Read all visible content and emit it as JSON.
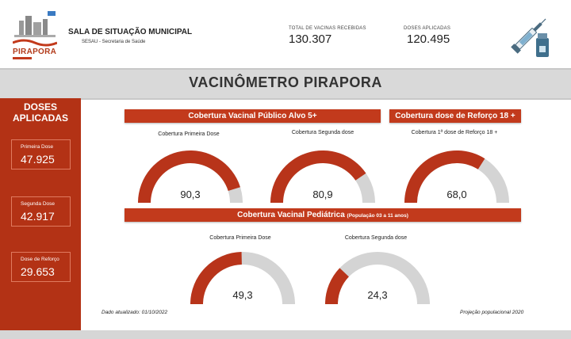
{
  "colors": {
    "accent": "#c23a1c",
    "gauge_fill": "#b8341a",
    "gauge_track": "#d4d4d4",
    "band": "#d9d9d9"
  },
  "header": {
    "logo_text": "PIRAPORA",
    "org_title": "SALA DE SITUAÇÃO MUNICIPAL",
    "org_subtitle": "SESAU - Secretaria de Saúde",
    "kpis": [
      {
        "label": "TOTAL DE VACINAS RECEBIDAS",
        "value": "130.307"
      },
      {
        "label": "DOSES APLICADAS",
        "value": "120.495"
      }
    ],
    "icon": "vaccine-syringe-icon"
  },
  "page_title": "VACINÔMETRO PIRAPORA",
  "sidebar": {
    "title_line1": "DOSES",
    "title_line2": "APLICADAS",
    "cards": [
      {
        "label": "Primeira Dose",
        "value": "47.925"
      },
      {
        "label": "Segunda Dose",
        "value": "42.917"
      },
      {
        "label": "Dose de Reforço",
        "value": "29.653"
      }
    ]
  },
  "sections": {
    "adult": "Cobertura Vacinal Público Alvo 5+",
    "booster": "Cobertura dose de Reforço 18 +",
    "pediatric": "Cobertura Vacinal Pediátrica",
    "pediatric_note": "(População 03 a 11 anos)"
  },
  "gauges": [
    {
      "caption": "Cobertura Primeira Dose",
      "value": 90.3,
      "display": "90,3"
    },
    {
      "caption": "Cobertura Segunda dose",
      "value": 80.9,
      "display": "80,9"
    },
    {
      "caption": "Cobertura 1ª dose de Reforço 18 +",
      "value": 68.0,
      "display": "68,0"
    },
    {
      "caption": "Cobertura Primeira Dose",
      "value": 49.3,
      "display": "49,3"
    },
    {
      "caption": "Cobertura Segunda dose",
      "value": 24.3,
      "display": "24,3"
    }
  ],
  "footer": {
    "updated": "Dado atualizado: 01/10/2022",
    "projection": "Projeção populacional 2020"
  }
}
